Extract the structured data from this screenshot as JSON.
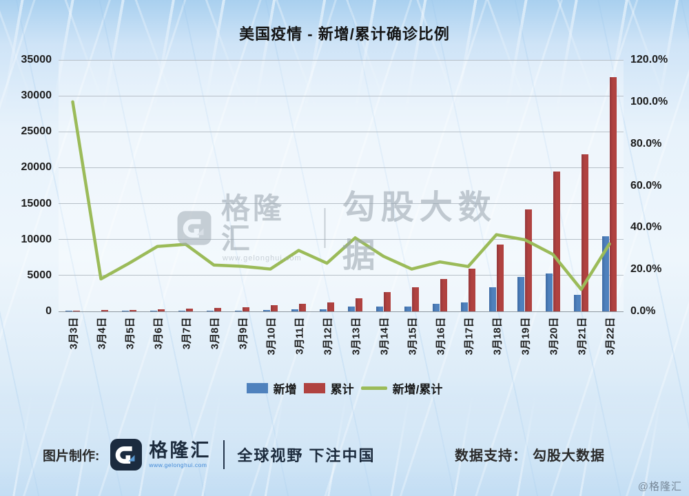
{
  "title": "美国疫情 - 新增/累计确诊比例",
  "chart_data": {
    "type": "bar+line combo",
    "title": "美国疫情 - 新增/累计确诊比例",
    "categories": [
      "3月3日",
      "3月4日",
      "3月5日",
      "3月6日",
      "3月7日",
      "3月8日",
      "3月9日",
      "3月10日",
      "3月11日",
      "3月12日",
      "3月13日",
      "3月14日",
      "3月15日",
      "3月16日",
      "3月17日",
      "3月18日",
      "3月19日",
      "3月20日",
      "3月21日",
      "3月22日"
    ],
    "series": [
      {
        "name": "新增",
        "type": "bar",
        "axis": "left",
        "color": "#4F81BD",
        "values": [
          100,
          24,
          50,
          90,
          128,
          115,
          130,
          180,
          300,
          290,
          650,
          700,
          680,
          1060,
          1260,
          3400,
          4840,
          5300,
          2300,
          10500
        ]
      },
      {
        "name": "累计",
        "type": "bar",
        "axis": "left",
        "color": "#B04240",
        "values": [
          100,
          155,
          217,
          290,
          400,
          520,
          605,
          890,
          1030,
          1260,
          1850,
          2660,
          3370,
          4500,
          5900,
          9300,
          14150,
          19500,
          21900,
          32600
        ]
      },
      {
        "name": "新增/累计",
        "type": "line",
        "axis": "right",
        "color": "#9BBB59",
        "values_pct": [
          100.0,
          15.5,
          23.0,
          31.0,
          32.0,
          22.1,
          21.5,
          20.2,
          29.1,
          23.0,
          35.1,
          26.3,
          20.2,
          23.6,
          21.4,
          36.6,
          34.2,
          27.2,
          10.5,
          32.2
        ]
      }
    ],
    "left_axis": {
      "min": 0,
      "max": 35000,
      "tick_labels": [
        "0",
        "5000",
        "10000",
        "15000",
        "20000",
        "25000",
        "30000",
        "35000"
      ]
    },
    "right_axis": {
      "min": 0,
      "max": 120,
      "tick_labels": [
        "0.0%",
        "20.0%",
        "40.0%",
        "60.0%",
        "80.0%",
        "100.0%",
        "120.0%"
      ]
    },
    "grid": true,
    "legend_position": "bottom"
  },
  "legend": {
    "new_label": "新增",
    "cum_label": "累计",
    "ratio_label": "新增/累计"
  },
  "watermark": {
    "brand": "格隆汇",
    "url": "www.gelonghui.com",
    "partner": "勾股大数据"
  },
  "footer": {
    "credit_label": "图片制作:",
    "brand": "格隆汇",
    "brand_url": "www.gelonghui.com",
    "slogan": "全球视野 下注中国",
    "data_label": "数据支持：",
    "data_value": "勾股大数据"
  },
  "corner_watermark": "@格隆汇",
  "colors": {
    "bar_new": "#4F81BD",
    "bar_cum": "#B04240",
    "ratio_line": "#9BBB59",
    "grid": "#b7c0c8",
    "text": "#1c1c1c"
  }
}
